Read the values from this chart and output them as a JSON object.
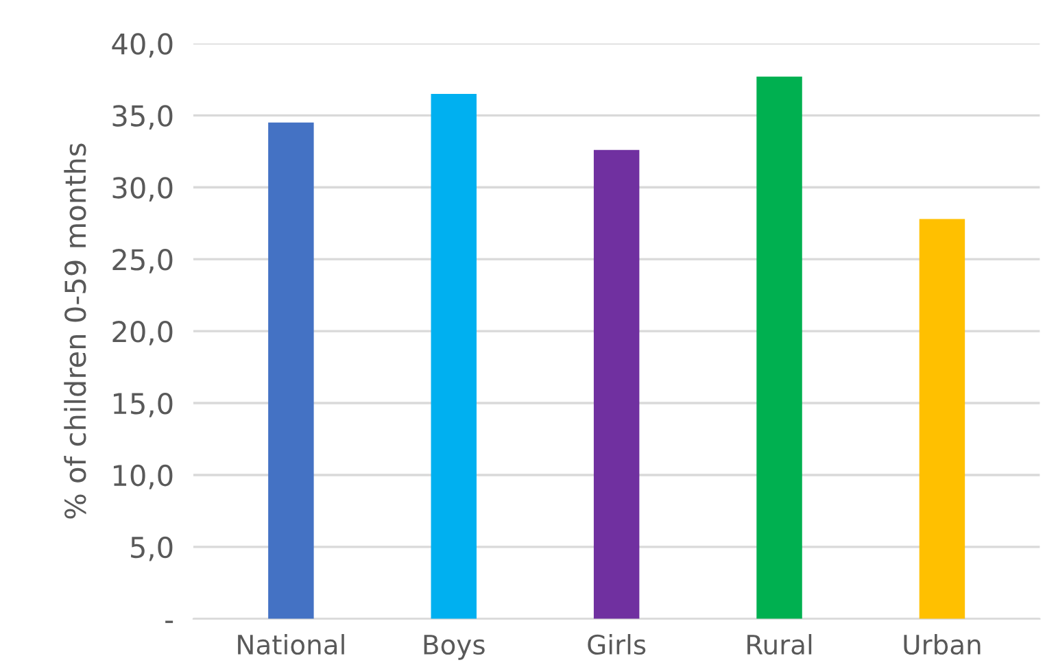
{
  "chart_data": {
    "type": "bar",
    "ylabel": "% of children 0-59 months",
    "categories": [
      "National",
      "Boys",
      "Girls",
      "Rural",
      "Urban"
    ],
    "values": [
      34.5,
      36.5,
      32.6,
      37.7,
      27.8
    ],
    "colors": [
      "#4472c4",
      "#00b0f0",
      "#7030a0",
      "#00b050",
      "#ffc000"
    ],
    "ylim": [
      0,
      40
    ],
    "yticks": [
      {
        "value": 0,
        "label": "-"
      },
      {
        "value": 5,
        "label": "5,0"
      },
      {
        "value": 10,
        "label": "10,0"
      },
      {
        "value": 15,
        "label": "15,0"
      },
      {
        "value": 20,
        "label": "20,0"
      },
      {
        "value": 25,
        "label": "25,0"
      },
      {
        "value": 30,
        "label": "30,0"
      },
      {
        "value": 35,
        "label": "35,0"
      },
      {
        "value": 40,
        "label": "40,0"
      }
    ],
    "grid": "y"
  }
}
